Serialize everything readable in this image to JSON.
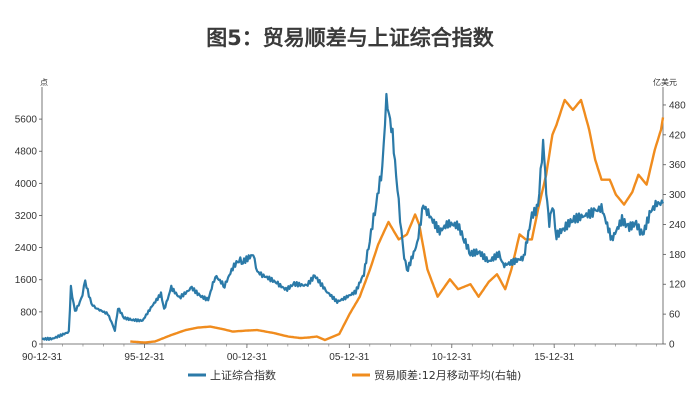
{
  "chart_data": {
    "type": "line",
    "title": "图5：贸易顺差与上证综合指数",
    "left_axis_unit": "点",
    "right_axis_unit": "亿美元",
    "left_yticks": [
      "0",
      "800",
      "1600",
      "2400",
      "3200",
      "4000",
      "4800",
      "5600"
    ],
    "right_yticks": [
      "0",
      "60",
      "120",
      "180",
      "240",
      "300",
      "360",
      "420",
      "480"
    ],
    "left_ylim": [
      0,
      6200
    ],
    "right_ylim": [
      0,
      500
    ],
    "x_ticks": [
      "90-12-31",
      "95-12-31",
      "00-12-31",
      "05-12-31",
      "10-12-31",
      "15-12-31"
    ],
    "x_tick_years": [
      1990.99,
      1995.99,
      2000.99,
      2005.99,
      2010.99,
      2015.99
    ],
    "x_range": [
      1990.99,
      2021.3
    ],
    "series": [
      {
        "name": "上证综合指数",
        "axis": "left",
        "color": "#2b7aa8",
        "x": [
          1990.99,
          1991.5,
          1992.3,
          1992.4,
          1992.6,
          1992.9,
          1993.1,
          1993.4,
          1993.6,
          1993.8,
          1994.2,
          1994.55,
          1994.7,
          1995.0,
          1995.4,
          1995.9,
          1996.3,
          1996.8,
          1996.95,
          1997.3,
          1997.7,
          1998.3,
          1998.7,
          1999.1,
          1999.45,
          1999.9,
          2000.3,
          2000.6,
          2000.8,
          2001.3,
          2001.5,
          2001.8,
          2002.2,
          2002.5,
          2002.9,
          2003.3,
          2003.9,
          2004.3,
          2004.9,
          2005.4,
          2005.8,
          2006.3,
          2006.7,
          2006.99,
          2007.3,
          2007.6,
          2007.8,
          2008.1,
          2008.4,
          2008.6,
          2008.8,
          2009.3,
          2009.6,
          2009.9,
          2010.4,
          2010.8,
          2011.3,
          2011.6,
          2011.9,
          2012.3,
          2012.8,
          2013.3,
          2013.5,
          2014.0,
          2014.5,
          2014.9,
          2015.2,
          2015.45,
          2015.6,
          2015.75,
          2015.9,
          2016.1,
          2016.5,
          2016.9,
          2017.5,
          2017.99,
          2018.3,
          2018.8,
          2019.3,
          2019.6,
          2019.99,
          2020.3,
          2020.7,
          2021.0,
          2021.3
        ],
        "values": [
          127,
          130,
          300,
          1400,
          800,
          1100,
          1550,
          1000,
          900,
          850,
          750,
          350,
          900,
          650,
          600,
          580,
          900,
          1250,
          850,
          1400,
          1150,
          1400,
          1200,
          1100,
          1700,
          1450,
          1900,
          2100,
          2050,
          2230,
          1800,
          1700,
          1600,
          1500,
          1350,
          1500,
          1450,
          1700,
          1300,
          1050,
          1150,
          1300,
          1750,
          2600,
          3500,
          4400,
          6100,
          5200,
          3500,
          2400,
          1800,
          2500,
          3450,
          3200,
          2800,
          3000,
          2950,
          2600,
          2250,
          2300,
          2050,
          2250,
          1950,
          2050,
          2150,
          3200,
          3400,
          5100,
          3800,
          3000,
          3500,
          2700,
          2900,
          3100,
          3200,
          3300,
          3400,
          2600,
          3100,
          2900,
          3000,
          2700,
          3300,
          3500,
          3500
        ]
      },
      {
        "name": "贸易顺差:12月移动平均(右轴)",
        "axis": "right",
        "color": "#f08c1e",
        "x": [
          1995.3,
          1996.0,
          1996.5,
          1997.3,
          1998.0,
          1998.6,
          1999.2,
          1999.8,
          2000.3,
          2001.0,
          2001.5,
          2002.3,
          2003.0,
          2003.6,
          2004.0,
          2004.4,
          2004.8,
          2005.5,
          2006.0,
          2006.5,
          2007.0,
          2007.4,
          2007.9,
          2008.4,
          2008.8,
          2009.2,
          2009.4,
          2009.8,
          2010.3,
          2010.9,
          2011.3,
          2011.9,
          2012.3,
          2012.8,
          2013.2,
          2013.6,
          2013.9,
          2014.3,
          2014.6,
          2014.9,
          2015.2,
          2015.6,
          2015.9,
          2016.1,
          2016.5,
          2016.9,
          2017.3,
          2017.7,
          2017.99,
          2018.3,
          2018.7,
          2019.0,
          2019.4,
          2019.8,
          2020.1,
          2020.5,
          2020.9,
          2021.2,
          2021.3
        ],
        "values": [
          5,
          3,
          5,
          18,
          28,
          33,
          35,
          30,
          25,
          27,
          28,
          22,
          15,
          12,
          13,
          15,
          8,
          20,
          60,
          95,
          150,
          200,
          245,
          210,
          220,
          260,
          240,
          150,
          95,
          130,
          110,
          120,
          95,
          125,
          140,
          110,
          150,
          220,
          210,
          210,
          270,
          340,
          420,
          440,
          490,
          470,
          490,
          430,
          370,
          330,
          330,
          300,
          280,
          305,
          340,
          320,
          390,
          430,
          455
        ]
      }
    ]
  }
}
